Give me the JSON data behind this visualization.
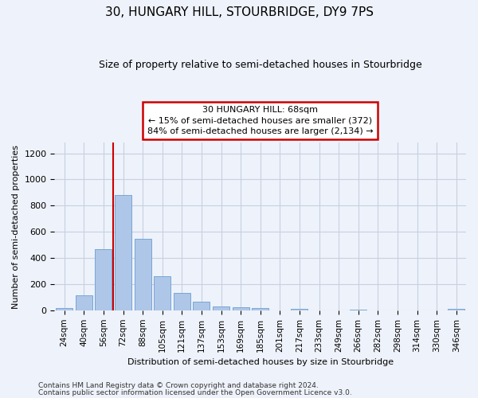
{
  "title": "30, HUNGARY HILL, STOURBRIDGE, DY9 7PS",
  "subtitle": "Size of property relative to semi-detached houses in Stourbridge",
  "xlabel": "Distribution of semi-detached houses by size in Stourbridge",
  "ylabel": "Number of semi-detached properties",
  "categories": [
    "24sqm",
    "40sqm",
    "56sqm",
    "72sqm",
    "88sqm",
    "105sqm",
    "121sqm",
    "137sqm",
    "153sqm",
    "169sqm",
    "185sqm",
    "201sqm",
    "217sqm",
    "233sqm",
    "249sqm",
    "266sqm",
    "282sqm",
    "298sqm",
    "314sqm",
    "330sqm",
    "346sqm"
  ],
  "bar_values": [
    18,
    115,
    468,
    880,
    548,
    258,
    130,
    65,
    32,
    22,
    17,
    0,
    10,
    0,
    0,
    8,
    0,
    0,
    0,
    0,
    10
  ],
  "bar_color": "#aec6e8",
  "bar_edge_color": "#6a9fd0",
  "vline_color": "#cc0000",
  "vline_x": 2.0,
  "annotation_line1": "30 HUNGARY HILL: 68sqm",
  "annotation_line2": "← 15% of semi-detached houses are smaller (372)",
  "annotation_line3": "84% of semi-detached houses are larger (2,134) →",
  "annotation_box_facecolor": "#ffffff",
  "annotation_box_edgecolor": "#cc0000",
  "ylim_max": 1280,
  "yticks": [
    0,
    200,
    400,
    600,
    800,
    1000,
    1200
  ],
  "footer1": "Contains HM Land Registry data © Crown copyright and database right 2024.",
  "footer2": "Contains public sector information licensed under the Open Government Licence v3.0.",
  "bg_color": "#eef2fa",
  "grid_color": "#c8d0e0",
  "title_fontsize": 11,
  "subtitle_fontsize": 9,
  "ylabel_fontsize": 8,
  "xlabel_fontsize": 8,
  "tick_fontsize": 7.5,
  "annotation_fontsize": 8,
  "footer_fontsize": 6.5
}
